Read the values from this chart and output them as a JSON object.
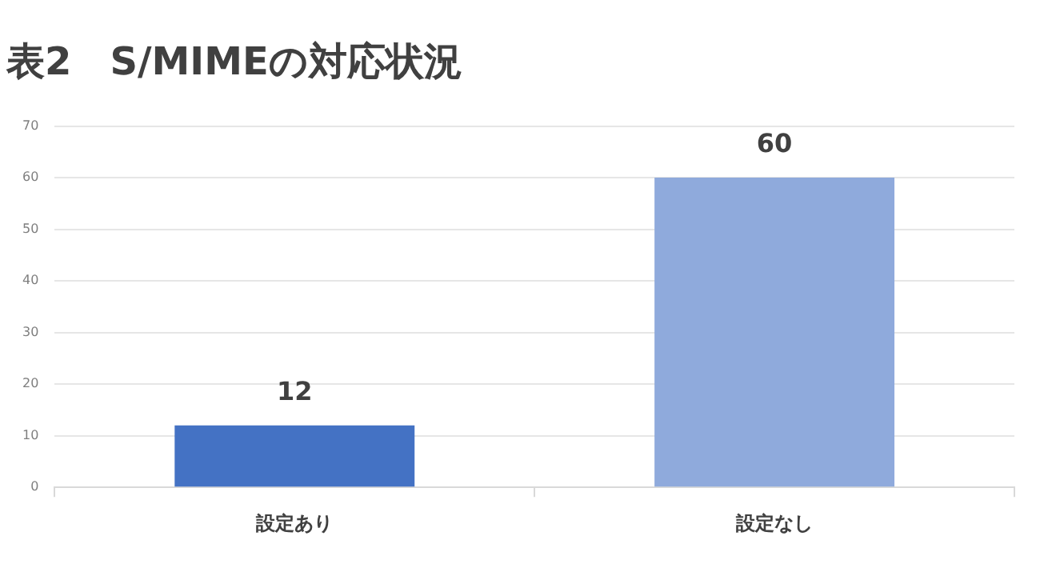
{
  "chart_data": {
    "type": "bar",
    "title": "表2　S/MIMEの対応状況",
    "categories": [
      "設定あり",
      "設定なし"
    ],
    "values": [
      12,
      60
    ],
    "colors": [
      "#4472c4",
      "#8faadc"
    ],
    "ylim": [
      0,
      70
    ],
    "yticks": [
      0,
      10,
      20,
      30,
      40,
      50,
      60,
      70
    ],
    "grid": "y",
    "data_labels": true,
    "legend": false
  }
}
